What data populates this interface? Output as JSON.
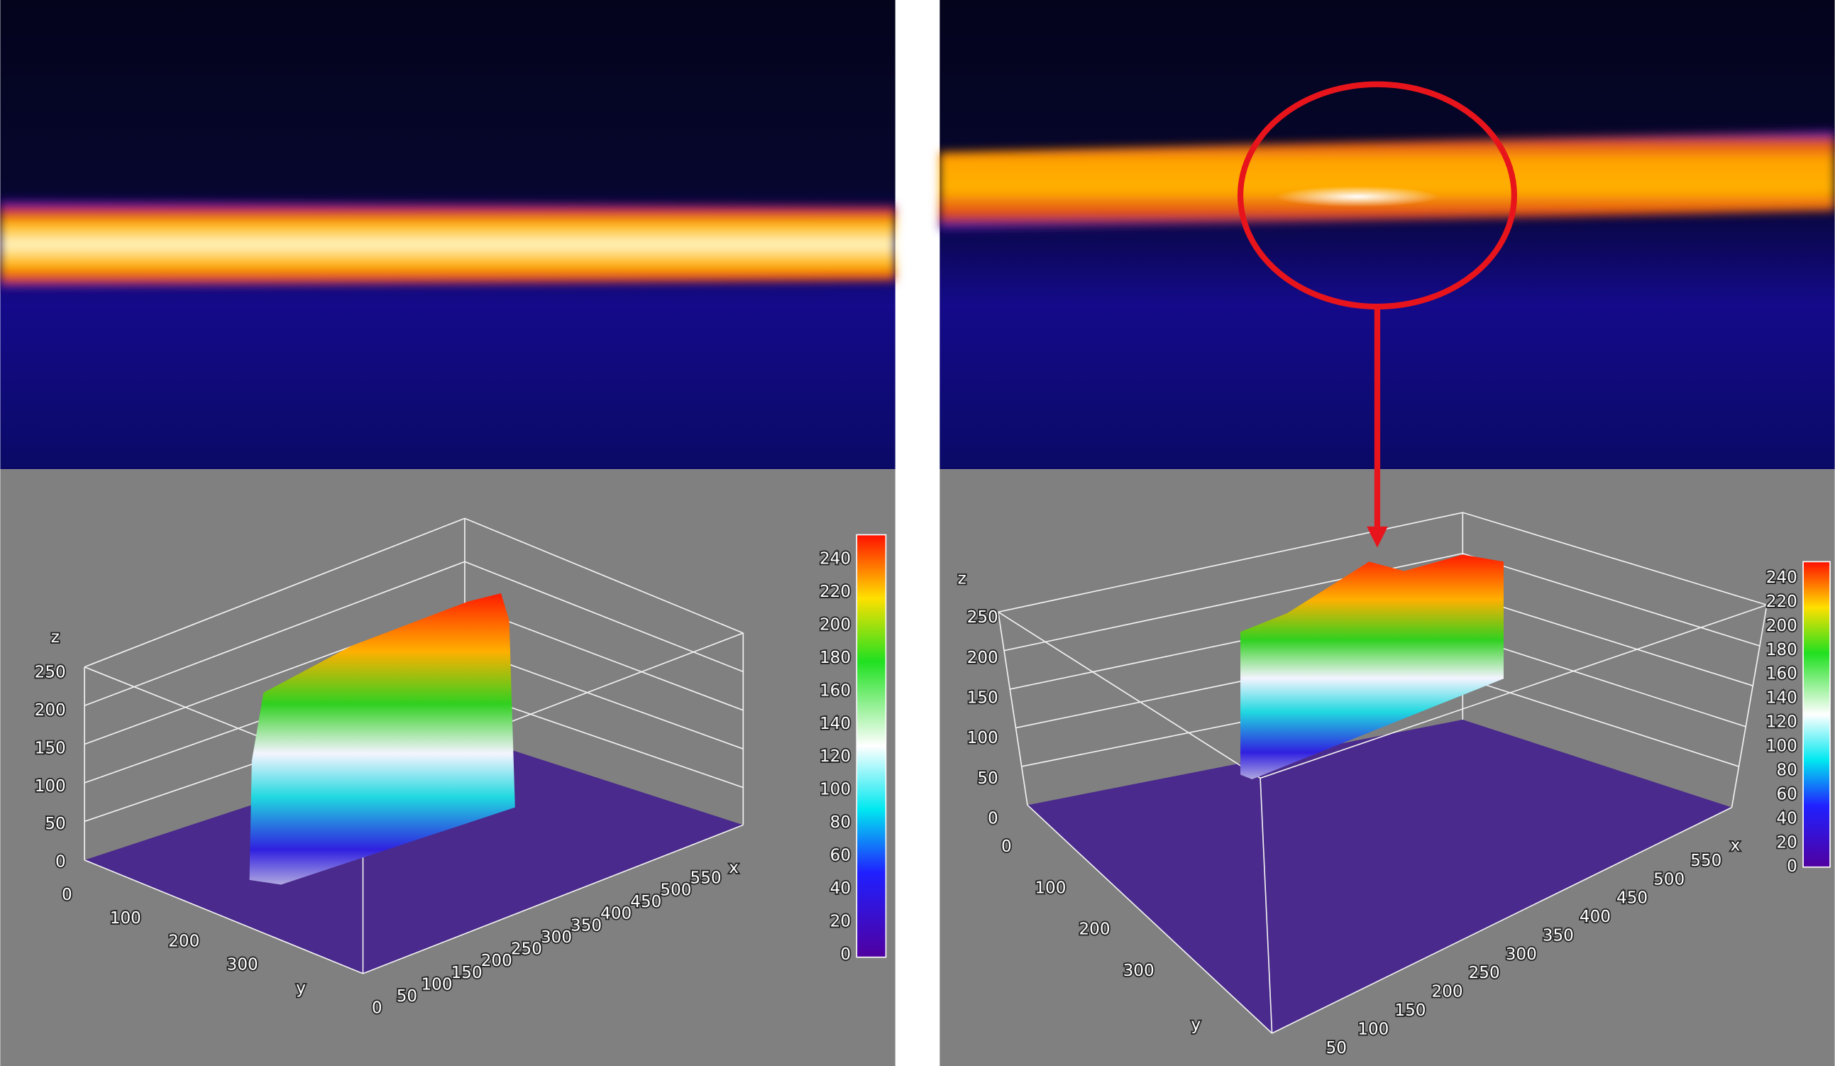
{
  "left": {
    "axis_labels": {
      "x": "x",
      "y": "y",
      "z": "z"
    },
    "z_ticks": [
      250,
      200,
      150,
      100,
      50,
      0
    ],
    "y_ticks": [
      0,
      100,
      200,
      300
    ],
    "x_ticks": [
      0,
      50,
      100,
      150,
      200,
      250,
      300,
      350,
      400,
      450,
      500,
      550
    ],
    "colorbar_ticks": [
      240,
      220,
      200,
      180,
      160,
      140,
      120,
      100,
      80,
      60,
      40,
      20,
      0
    ]
  },
  "right": {
    "axis_labels": {
      "x": "x",
      "y": "y",
      "z": "z"
    },
    "z_ticks": [
      250,
      200,
      150,
      100,
      50,
      0
    ],
    "y_ticks": [
      0,
      100,
      200,
      300
    ],
    "x_ticks": [
      50,
      100,
      150,
      200,
      250,
      300,
      350,
      400,
      450,
      500,
      550
    ],
    "colorbar_ticks": [
      240,
      220,
      200,
      180,
      160,
      140,
      120,
      100,
      80,
      60,
      40,
      20,
      0
    ]
  }
}
